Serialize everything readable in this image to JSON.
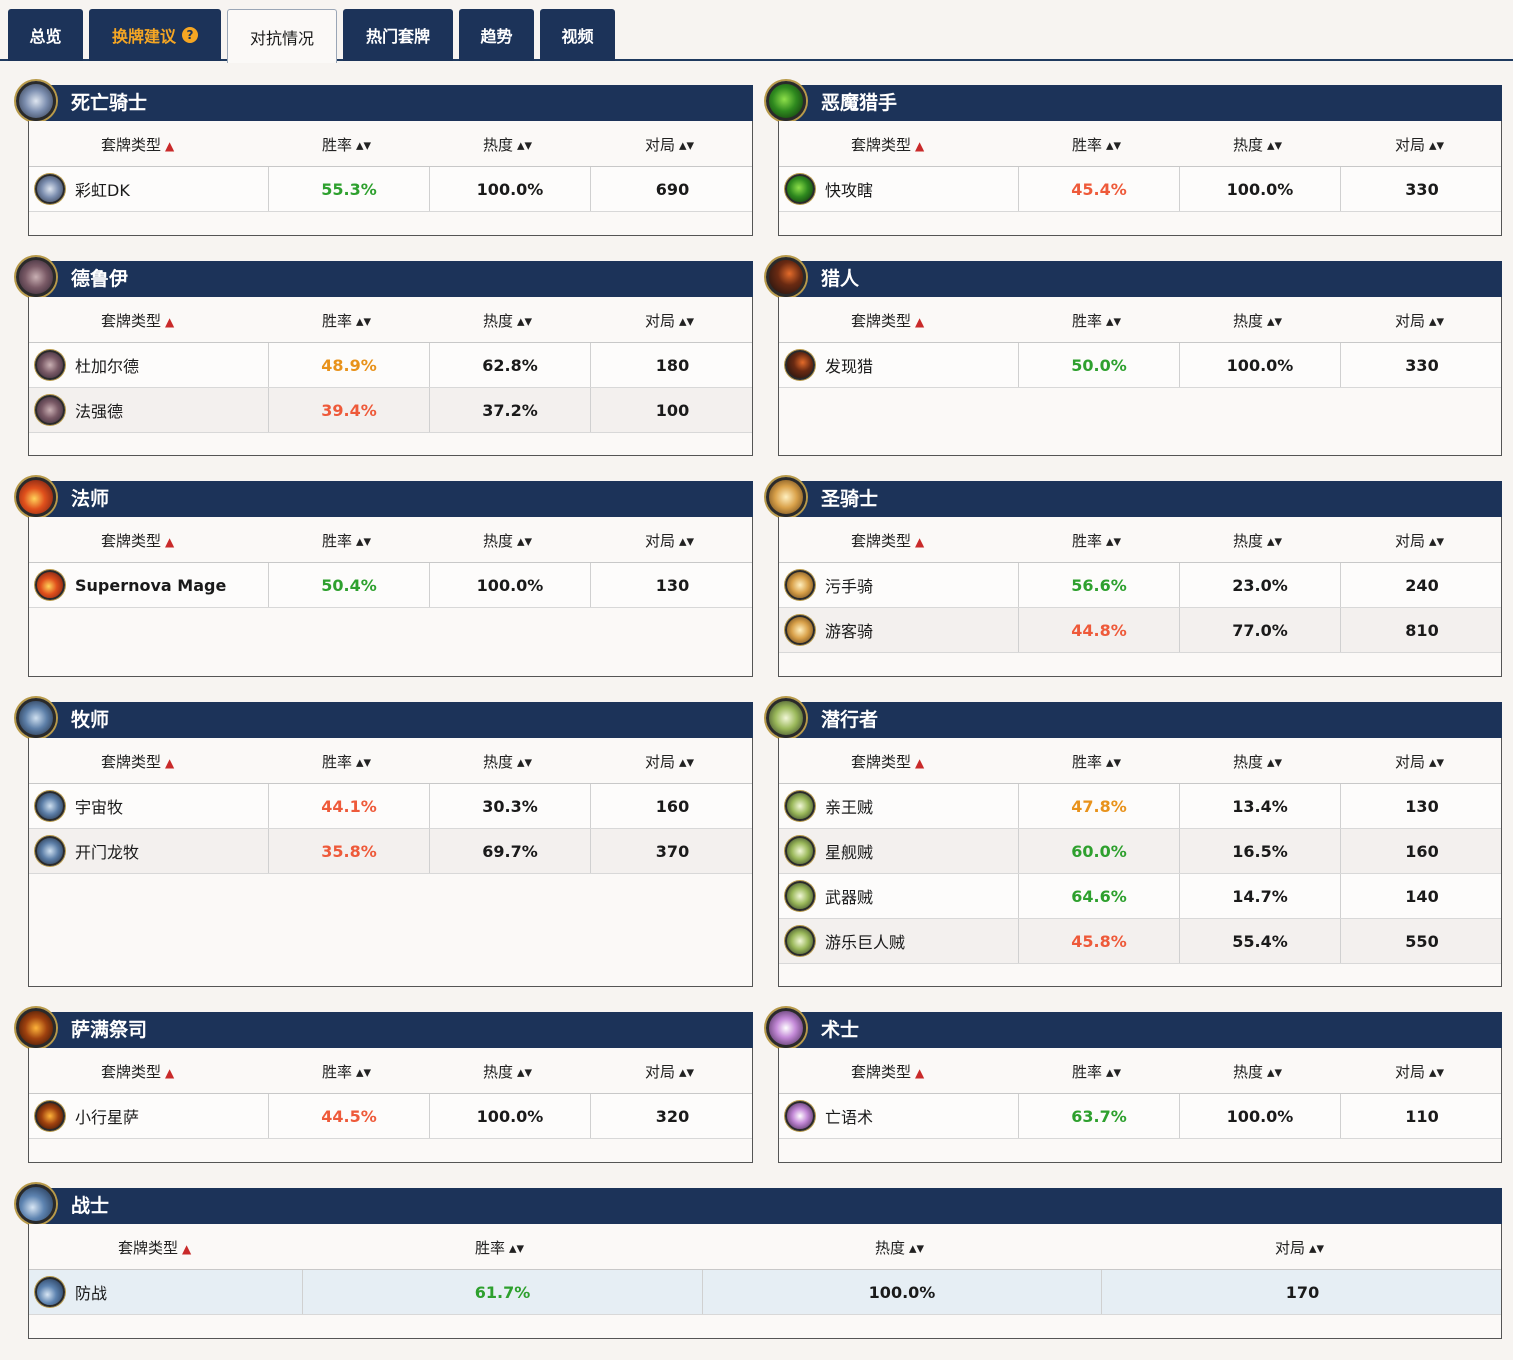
{
  "tabs": [
    {
      "label": "总览"
    },
    {
      "label": "换牌建议",
      "help": "?"
    },
    {
      "label": "对抗情况"
    },
    {
      "label": "热门套牌"
    },
    {
      "label": "趋势"
    },
    {
      "label": "视频"
    }
  ],
  "columns": {
    "deck_type": "套牌类型",
    "winrate": "胜率",
    "popularity": "热度",
    "games": "对局",
    "sort_asc": "▲",
    "sort_both": "▴▾"
  },
  "colors": {
    "header_navy": "#1c3359",
    "highlight_tab": "#f5a623",
    "winrate_good": "#2ea02e",
    "winrate_mid": "#e8921b",
    "winrate_bad": "#ee5a3a"
  },
  "panels": [
    {
      "title": "死亡骑士",
      "icon": "death-knight-icon",
      "decks": [
        {
          "name": "彩虹DK",
          "winrate": "55.3%",
          "popularity": "100.0%",
          "games": "690"
        }
      ]
    },
    {
      "title": "恶魔猎手",
      "icon": "demon-hunter-icon",
      "decks": [
        {
          "name": "快攻瞎",
          "winrate": "45.4%",
          "popularity": "100.0%",
          "games": "330"
        }
      ]
    },
    {
      "title": "德鲁伊",
      "icon": "druid-icon",
      "decks": [
        {
          "name": "杜加尔德",
          "winrate": "48.9%",
          "popularity": "62.8%",
          "games": "180"
        },
        {
          "name": "法强德",
          "winrate": "39.4%",
          "popularity": "37.2%",
          "games": "100"
        }
      ]
    },
    {
      "title": "猎人",
      "icon": "hunter-icon",
      "decks": [
        {
          "name": "发现猎",
          "winrate": "50.0%",
          "popularity": "100.0%",
          "games": "330"
        }
      ]
    },
    {
      "title": "法师",
      "icon": "mage-icon",
      "decks": [
        {
          "name": "Supernova Mage",
          "winrate": "50.4%",
          "popularity": "100.0%",
          "games": "130"
        }
      ]
    },
    {
      "title": "圣骑士",
      "icon": "paladin-icon",
      "decks": [
        {
          "name": "污手骑",
          "winrate": "56.6%",
          "popularity": "23.0%",
          "games": "240"
        },
        {
          "name": "游客骑",
          "winrate": "44.8%",
          "popularity": "77.0%",
          "games": "810"
        }
      ]
    },
    {
      "title": "牧师",
      "icon": "priest-icon",
      "decks": [
        {
          "name": "宇宙牧",
          "winrate": "44.1%",
          "popularity": "30.3%",
          "games": "160"
        },
        {
          "name": "开门龙牧",
          "winrate": "35.8%",
          "popularity": "69.7%",
          "games": "370"
        }
      ]
    },
    {
      "title": "潜行者",
      "icon": "rogue-icon",
      "decks": [
        {
          "name": "亲王贼",
          "winrate": "47.8%",
          "popularity": "13.4%",
          "games": "130"
        },
        {
          "name": "星舰贼",
          "winrate": "60.0%",
          "popularity": "16.5%",
          "games": "160"
        },
        {
          "name": "武器贼",
          "winrate": "64.6%",
          "popularity": "14.7%",
          "games": "140"
        },
        {
          "name": "游乐巨人贼",
          "winrate": "45.8%",
          "popularity": "55.4%",
          "games": "550"
        }
      ]
    },
    {
      "title": "萨满祭司",
      "icon": "shaman-icon",
      "decks": [
        {
          "name": "小行星萨",
          "winrate": "44.5%",
          "popularity": "100.0%",
          "games": "320"
        }
      ]
    },
    {
      "title": "术士",
      "icon": "warlock-icon",
      "decks": [
        {
          "name": "亡语术",
          "winrate": "63.7%",
          "popularity": "100.0%",
          "games": "110"
        }
      ]
    },
    {
      "title": "战士",
      "icon": "warrior-icon",
      "decks": [
        {
          "name": "防战",
          "winrate": "61.7%",
          "popularity": "100.0%",
          "games": "170"
        }
      ]
    }
  ]
}
